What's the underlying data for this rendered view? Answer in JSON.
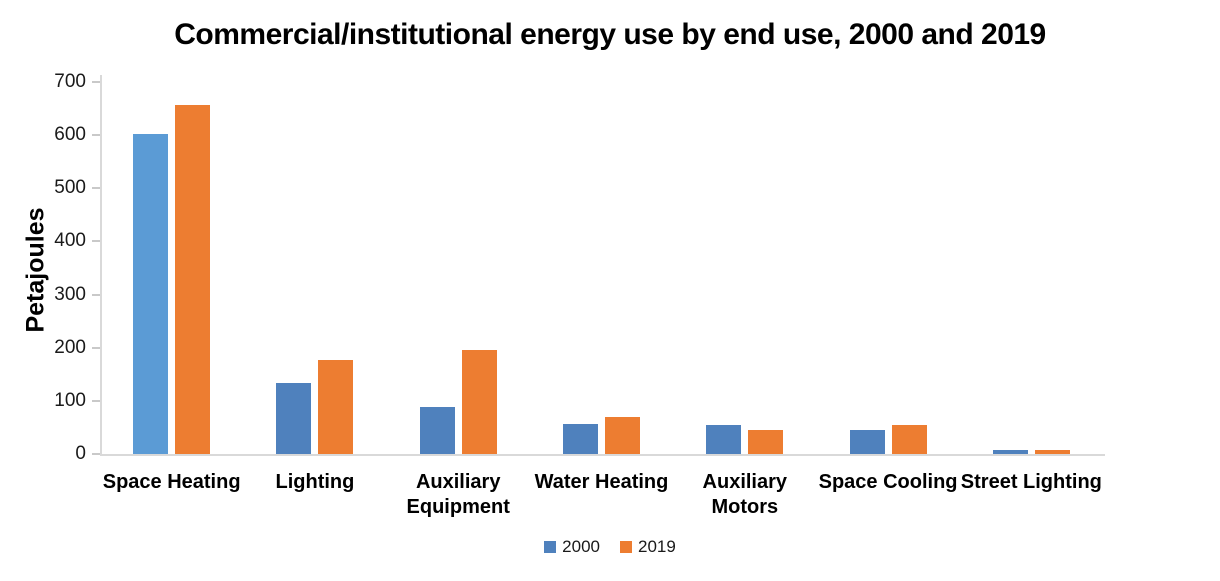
{
  "chart_data": {
    "type": "bar",
    "title": "Commercial/institutional energy use by end use, 2000 and 2019",
    "xlabel": "",
    "ylabel": "Petajoules",
    "categories": [
      "Space Heating",
      "Lighting",
      "Auxiliary\nEquipment",
      "Water Heating",
      "Auxiliary\nMotors",
      "Space Cooling",
      "Street Lighting"
    ],
    "series": [
      {
        "name": "2000",
        "color": "#4f81bd",
        "values": [
          602,
          134,
          88,
          57,
          54,
          45,
          7
        ],
        "point_color_overrides": [
          {
            "index": 0,
            "color": "#5b9bd5"
          }
        ]
      },
      {
        "name": "2019",
        "color": "#ed7d31",
        "values": [
          656,
          177,
          196,
          69,
          45,
          54,
          7
        ],
        "point_color_overrides": []
      }
    ],
    "ylim": [
      0,
      700
    ],
    "ytick_step": 100,
    "grid": false,
    "legend_position": "bottom",
    "axis_line_color": "#d9d9d9",
    "tick_mark_color": "#c9c9c9"
  }
}
